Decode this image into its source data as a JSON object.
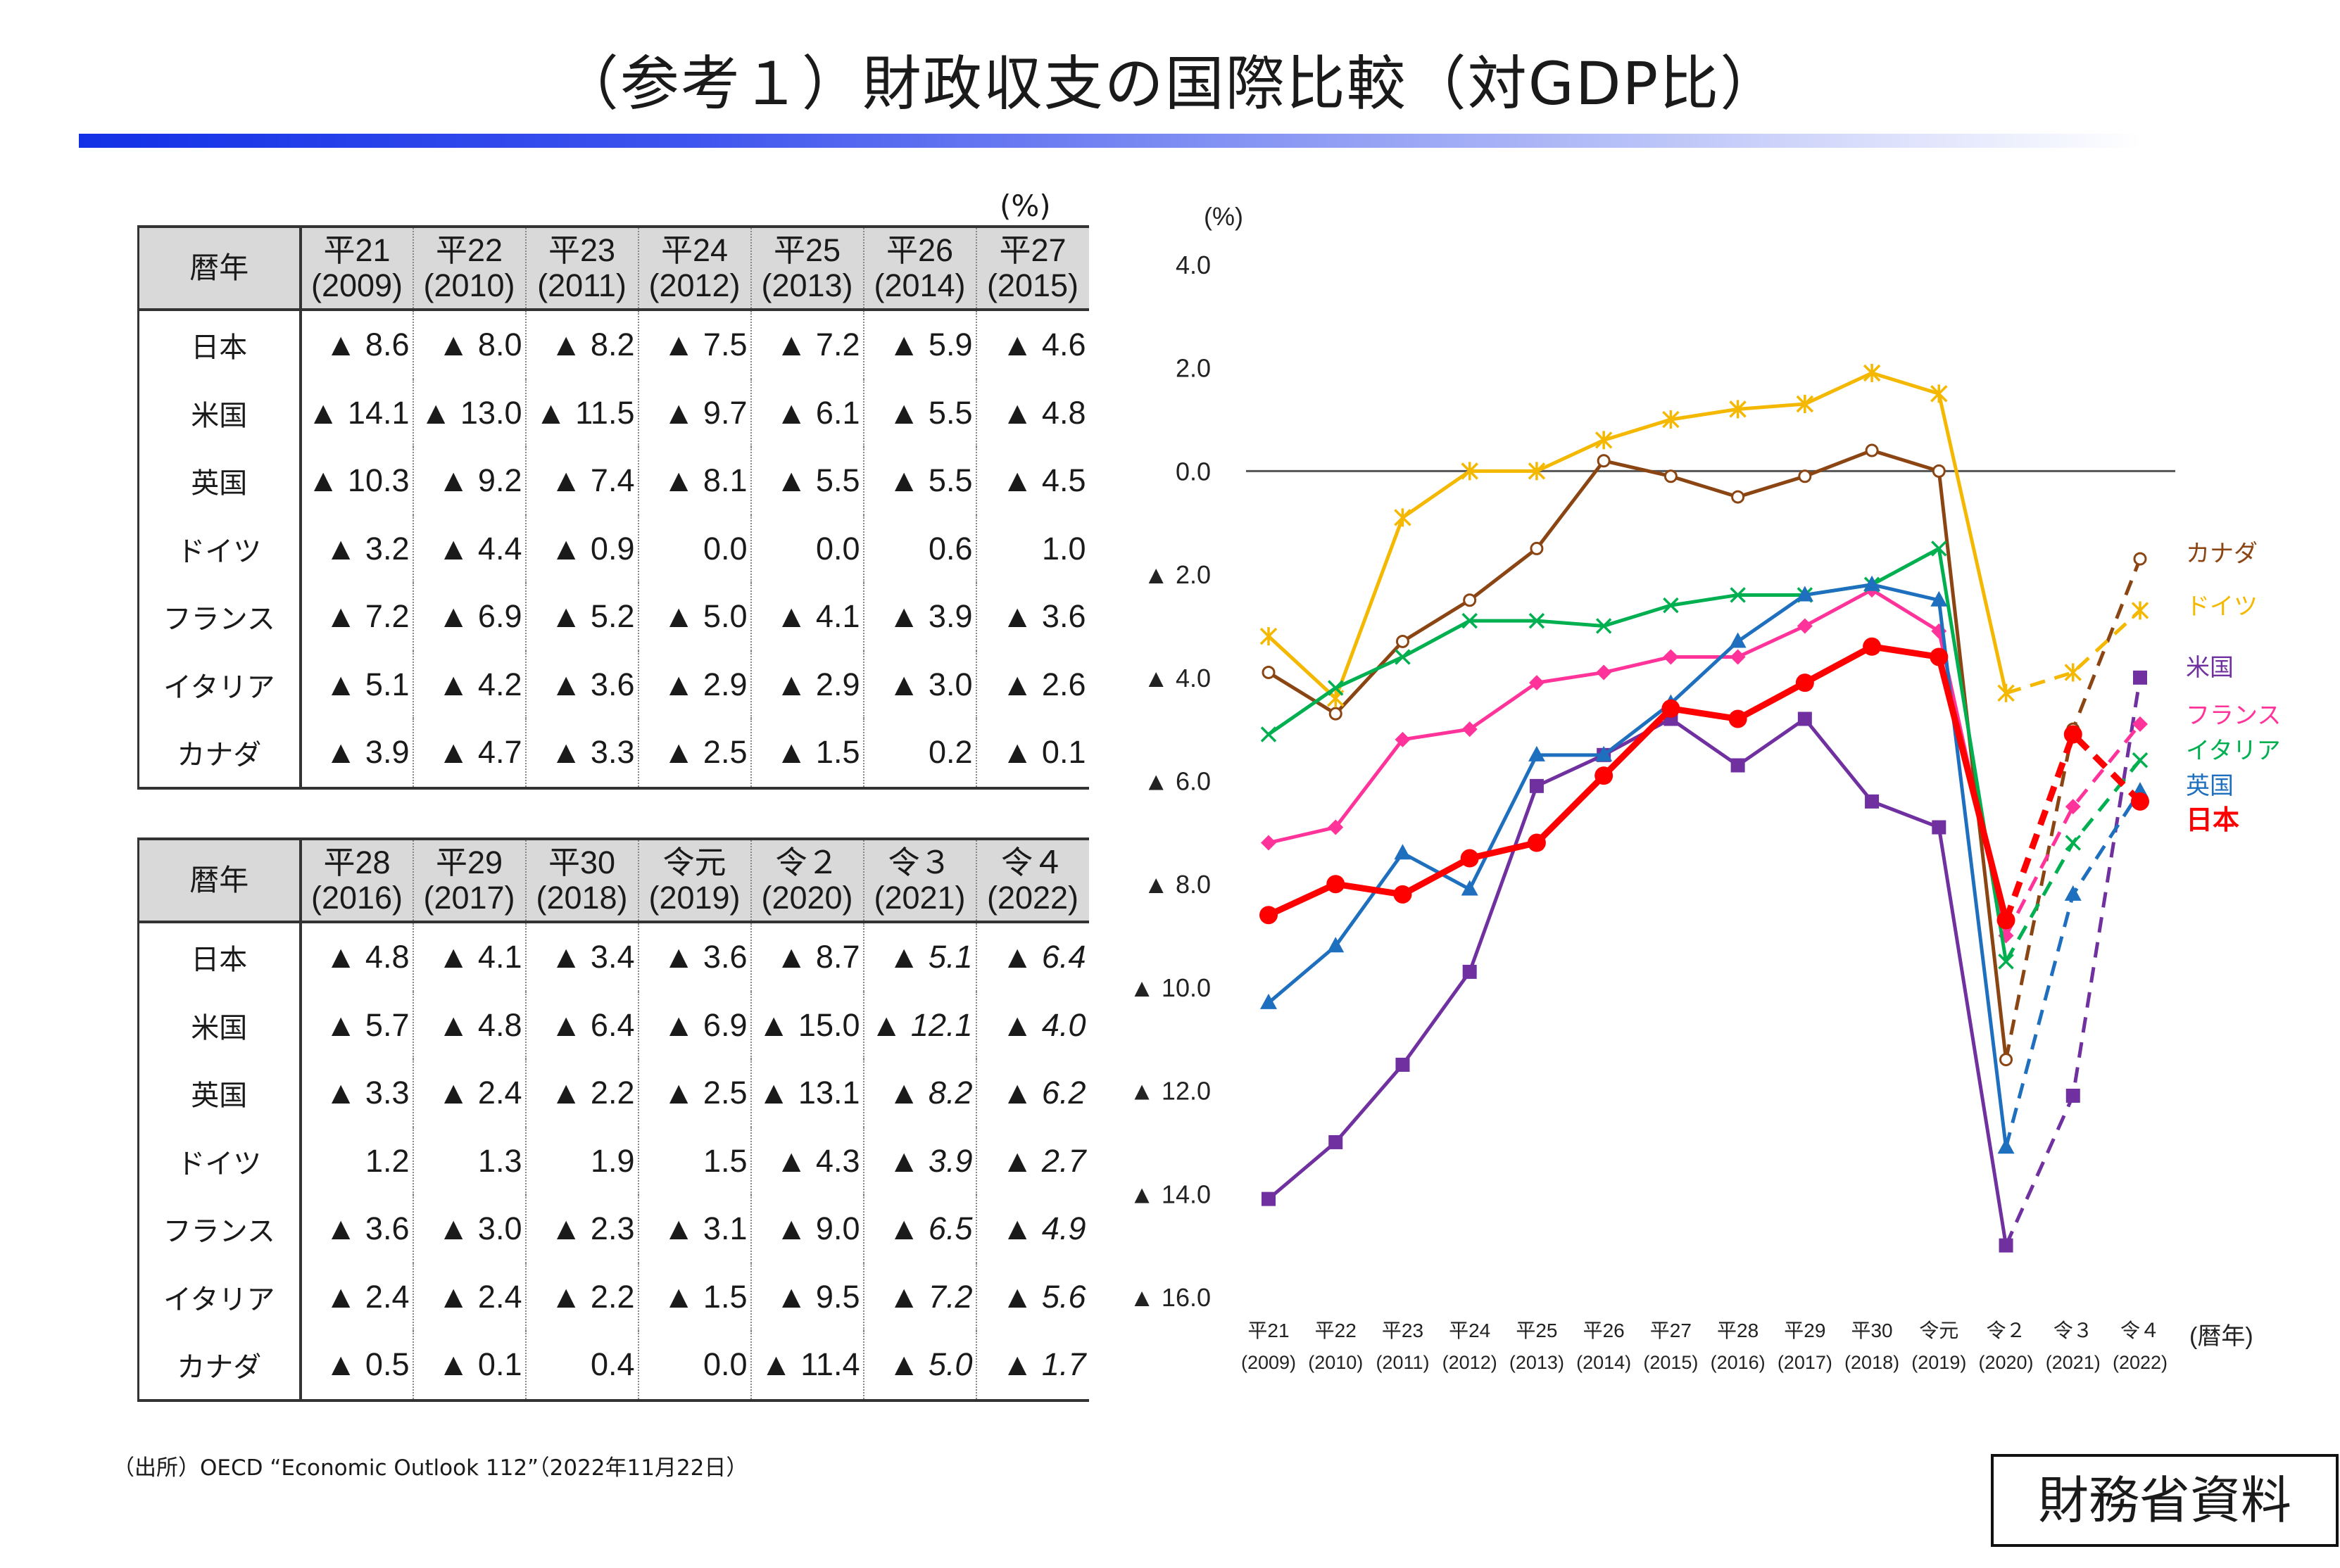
{
  "title": "（参考１）財政収支の国際比較（対GDP比）",
  "table_unit": "(%)",
  "table_header_label": "暦年",
  "countries_table": [
    "日本",
    "米国",
    "英国",
    "ドイツ",
    "フランス",
    "イタリア",
    "カナダ"
  ],
  "table1": {
    "years": [
      [
        "平21",
        "(2009)"
      ],
      [
        "平22",
        "(2010)"
      ],
      [
        "平23",
        "(2011)"
      ],
      [
        "平24",
        "(2012)"
      ],
      [
        "平25",
        "(2013)"
      ],
      [
        "平26",
        "(2014)"
      ],
      [
        "平27",
        "(2015)"
      ]
    ],
    "rows": [
      [
        "▲ 8.6",
        "▲ 8.0",
        "▲ 8.2",
        "▲ 7.5",
        "▲ 7.2",
        "▲ 5.9",
        "▲ 4.6"
      ],
      [
        "▲ 14.1",
        "▲ 13.0",
        "▲ 11.5",
        "▲ 9.7",
        "▲ 6.1",
        "▲ 5.5",
        "▲ 4.8"
      ],
      [
        "▲ 10.3",
        "▲ 9.2",
        "▲ 7.4",
        "▲ 8.1",
        "▲ 5.5",
        "▲ 5.5",
        "▲ 4.5"
      ],
      [
        "▲ 3.2",
        "▲ 4.4",
        "▲ 0.9",
        "0.0",
        "0.0",
        "0.6",
        "1.0"
      ],
      [
        "▲ 7.2",
        "▲ 6.9",
        "▲ 5.2",
        "▲ 5.0",
        "▲ 4.1",
        "▲ 3.9",
        "▲ 3.6"
      ],
      [
        "▲ 5.1",
        "▲ 4.2",
        "▲ 3.6",
        "▲ 2.9",
        "▲ 2.9",
        "▲ 3.0",
        "▲ 2.6"
      ],
      [
        "▲ 3.9",
        "▲ 4.7",
        "▲ 3.3",
        "▲ 2.5",
        "▲ 1.5",
        "0.2",
        "▲ 0.1"
      ]
    ]
  },
  "table2": {
    "years": [
      [
        "平28",
        "(2016)"
      ],
      [
        "平29",
        "(2017)"
      ],
      [
        "平30",
        "(2018)"
      ],
      [
        "令元",
        "(2019)"
      ],
      [
        "令２",
        "(2020)"
      ],
      [
        "令３",
        "(2021)"
      ],
      [
        "令４",
        "(2022)"
      ]
    ],
    "rows": [
      [
        "▲ 4.8",
        "▲ 4.1",
        "▲ 3.4",
        "▲ 3.6",
        "▲ 8.7",
        "▲ 5.1",
        "▲ 6.4"
      ],
      [
        "▲ 5.7",
        "▲ 4.8",
        "▲ 6.4",
        "▲ 6.9",
        "▲ 15.0",
        "▲ 12.1",
        "▲ 4.0"
      ],
      [
        "▲ 3.3",
        "▲ 2.4",
        "▲ 2.2",
        "▲ 2.5",
        "▲ 13.1",
        "▲ 8.2",
        "▲ 6.2"
      ],
      [
        "1.2",
        "1.3",
        "1.9",
        "1.5",
        "▲ 4.3",
        "▲ 3.9",
        "▲ 2.7"
      ],
      [
        "▲ 3.6",
        "▲ 3.0",
        "▲ 2.3",
        "▲ 3.1",
        "▲ 9.0",
        "▲ 6.5",
        "▲ 4.9"
      ],
      [
        "▲ 2.4",
        "▲ 2.4",
        "▲ 2.2",
        "▲ 1.5",
        "▲ 9.5",
        "▲ 7.2",
        "▲ 5.6"
      ],
      [
        "▲ 0.5",
        "▲ 0.1",
        "0.4",
        "0.0",
        "▲ 11.4",
        "▲ 5.0",
        "▲ 1.7"
      ]
    ],
    "italic_cols": [
      5,
      6
    ]
  },
  "source": "（出所）OECD “Economic Outlook 112”（2022年11月22日）",
  "stamp": "財務省資料",
  "chart_data": {
    "type": "line",
    "x": [
      "平21",
      "平22",
      "平23",
      "平24",
      "平25",
      "平26",
      "平27",
      "平28",
      "平29",
      "平30",
      "令元",
      "令２",
      "令３",
      "令４"
    ],
    "x_years": [
      "(2009)",
      "(2010)",
      "(2011)",
      "(2012)",
      "(2013)",
      "(2014)",
      "(2015)",
      "(2016)",
      "(2017)",
      "(2018)",
      "(2019)",
      "(2020)",
      "(2021)",
      "(2022)"
    ],
    "ylabel": "(%)",
    "xlabel": "(暦年)",
    "ylim": [
      -16.0,
      4.0
    ],
    "yticks": [
      4.0,
      2.0,
      0.0,
      -2.0,
      -4.0,
      -6.0,
      -8.0,
      -10.0,
      -12.0,
      -14.0,
      -16.0
    ],
    "ytick_labels": [
      "4.0",
      "2.0",
      "0.0",
      "▲ 2.0",
      "▲ 4.0",
      "▲ 6.0",
      "▲ 8.0",
      "▲ 10.0",
      "▲ 12.0",
      "▲ 14.0",
      "▲ 16.0"
    ],
    "dashed_from_index": 11,
    "series": [
      {
        "name": "カナダ",
        "color": "#8b4513",
        "marker": "circle-open",
        "values": [
          -3.9,
          -4.7,
          -3.3,
          -2.5,
          -1.5,
          0.2,
          -0.1,
          -0.5,
          -0.1,
          0.4,
          0.0,
          -11.4,
          -5.0,
          -1.7
        ]
      },
      {
        "name": "ドイツ",
        "color": "#f5b800",
        "marker": "star",
        "values": [
          -3.2,
          -4.4,
          -0.9,
          0.0,
          0.0,
          0.6,
          1.0,
          1.2,
          1.3,
          1.9,
          1.5,
          -4.3,
          -3.9,
          -2.7
        ]
      },
      {
        "name": "米国",
        "color": "#7030a0",
        "marker": "square",
        "values": [
          -14.1,
          -13.0,
          -11.5,
          -9.7,
          -6.1,
          -5.5,
          -4.8,
          -5.7,
          -4.8,
          -6.4,
          -6.9,
          -15.0,
          -12.1,
          -4.0
        ]
      },
      {
        "name": "フランス",
        "color": "#ff3399",
        "marker": "diamond",
        "values": [
          -7.2,
          -6.9,
          -5.2,
          -5.0,
          -4.1,
          -3.9,
          -3.6,
          -3.6,
          -3.0,
          -2.3,
          -3.1,
          -9.0,
          -6.5,
          -4.9
        ]
      },
      {
        "name": "イタリア",
        "color": "#00b050",
        "marker": "x",
        "values": [
          -5.1,
          -4.2,
          -3.6,
          -2.9,
          -2.9,
          -3.0,
          -2.6,
          -2.4,
          -2.4,
          -2.2,
          -1.5,
          -9.5,
          -7.2,
          -5.6
        ]
      },
      {
        "name": "英国",
        "color": "#1f6fbf",
        "marker": "triangle",
        "values": [
          -10.3,
          -9.2,
          -7.4,
          -8.1,
          -5.5,
          -5.5,
          -4.5,
          -3.3,
          -2.4,
          -2.2,
          -2.5,
          -13.1,
          -8.2,
          -6.2
        ]
      },
      {
        "name": "日本",
        "color": "#ff0000",
        "marker": "circle",
        "values": [
          -8.6,
          -8.0,
          -8.2,
          -7.5,
          -7.2,
          -5.9,
          -4.6,
          -4.8,
          -4.1,
          -3.4,
          -3.6,
          -8.7,
          -5.1,
          -6.4
        ]
      }
    ],
    "legend_order": [
      "カナダ",
      "ドイツ",
      "米国",
      "フランス",
      "イタリア",
      "英国",
      "日本"
    ]
  }
}
